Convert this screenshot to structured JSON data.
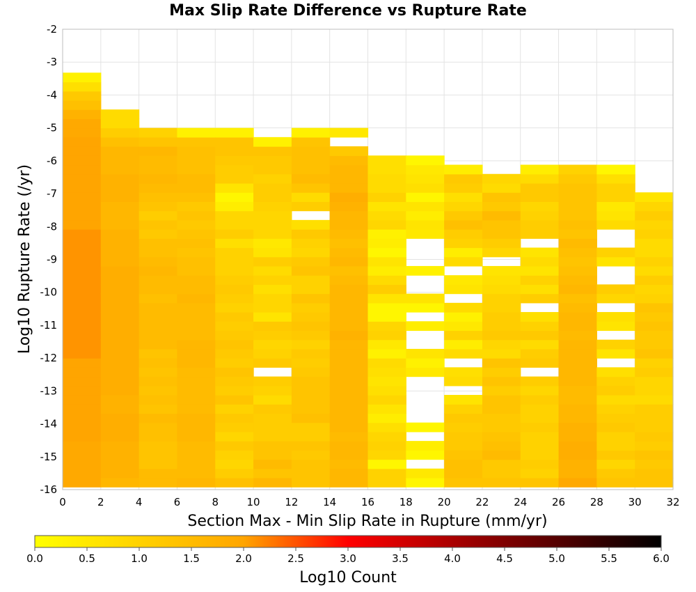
{
  "chart_data": {
    "type": "heatmap",
    "title": "Max Slip Rate Difference vs Rupture Rate",
    "xlabel": "Section Max - Min Slip Rate in Rupture (mm/yr)",
    "ylabel": "Log10 Rupture Rate (/yr)",
    "xlim": [
      0,
      32
    ],
    "ylim": [
      -16,
      -2
    ],
    "x_ticks": [
      "0",
      "2",
      "4",
      "6",
      "8",
      "10",
      "12",
      "14",
      "16",
      "18",
      "20",
      "22",
      "24",
      "26",
      "28",
      "30",
      "32"
    ],
    "y_ticks": [
      "-2",
      "-3",
      "-4",
      "-5",
      "-6",
      "-7",
      "-8",
      "-9",
      "-10",
      "-11",
      "-12",
      "-13",
      "-14",
      "-15",
      "-16"
    ],
    "x_bin_width": 2,
    "y_bin_height": 0.28,
    "y_bin_edges_start": -15.92,
    "grid": true,
    "colorbar": {
      "label": "Log10 Count",
      "range": [
        0,
        6
      ],
      "ticks": [
        "0.0",
        "0.5",
        "1.0",
        "1.5",
        "2.0",
        "2.5",
        "3.0",
        "3.5",
        "4.0",
        "4.5",
        "5.0",
        "5.5",
        "6.0"
      ],
      "colors": [
        "#ffff00",
        "#ffa500",
        "#ff0000",
        "#000000"
      ]
    },
    "columns": [
      {
        "x_start": 0,
        "values": [
          1.9,
          1.9,
          1.9,
          1.9,
          1.9,
          2.0,
          2.0,
          2.0,
          2.0,
          2.0,
          2.0,
          2.0,
          2.0,
          2.0,
          2.1,
          2.1,
          2.1,
          2.1,
          2.1,
          2.1,
          2.1,
          2.1,
          2.1,
          2.1,
          2.1,
          2.1,
          2.1,
          2.1,
          2.0,
          2.0,
          2.0,
          2.0,
          2.0,
          2.0,
          2.0,
          2.0,
          2.0,
          2.0,
          1.9,
          1.9,
          1.7,
          1.4,
          1.2,
          0.7,
          0.3
        ]
      },
      {
        "x_start": 2,
        "values": [
          1.6,
          1.7,
          1.7,
          1.7,
          1.7,
          1.8,
          1.8,
          1.8,
          1.7,
          1.7,
          1.8,
          1.8,
          1.8,
          1.8,
          1.8,
          1.8,
          1.8,
          1.8,
          1.8,
          1.8,
          1.8,
          1.8,
          1.8,
          1.8,
          1.7,
          1.7,
          1.7,
          1.7,
          1.6,
          1.6,
          1.6,
          1.7,
          1.7,
          1.7,
          1.6,
          1.6,
          1.6,
          1.4,
          1.1,
          0.8,
          0.8
        ]
      },
      {
        "x_start": 4,
        "values": [
          1.5,
          1.5,
          1.3,
          1.3,
          1.3,
          1.4,
          1.4,
          1.5,
          1.3,
          1.4,
          1.3,
          1.4,
          1.3,
          1.4,
          1.3,
          1.5,
          1.5,
          1.5,
          1.5,
          1.5,
          1.4,
          1.5,
          1.5,
          1.6,
          1.5,
          1.4,
          1.4,
          1.2,
          1.3,
          1.1,
          1.3,
          1.4,
          1.5,
          1.6,
          1.5,
          1.5,
          1.6,
          1.3,
          1.0
        ]
      },
      {
        "x_start": 6,
        "values": [
          1.6,
          1.5,
          1.5,
          1.5,
          1.5,
          1.6,
          1.6,
          1.6,
          1.5,
          1.5,
          1.5,
          1.5,
          1.5,
          1.6,
          1.6,
          1.6,
          1.5,
          1.5,
          1.5,
          1.5,
          1.6,
          1.5,
          1.5,
          1.4,
          1.4,
          1.3,
          1.4,
          1.3,
          1.2,
          1.3,
          1.2,
          1.4,
          1.5,
          1.5,
          1.4,
          1.4,
          1.4,
          1.3,
          0.3
        ]
      },
      {
        "x_start": 8,
        "values": [
          1.4,
          1.1,
          0.9,
          1.0,
          1.2,
          0.9,
          1.1,
          1.2,
          1.0,
          1.3,
          1.1,
          1.2,
          1.3,
          1.1,
          1.2,
          1.3,
          1.2,
          1.1,
          1.2,
          1.0,
          1.1,
          1.2,
          1.1,
          1.0,
          1.0,
          1.0,
          0.7,
          1.1,
          0.9,
          0.9,
          0.4,
          0.2,
          0.6,
          1.1,
          1.1,
          1.2,
          1.3,
          1.3,
          0.3
        ]
      },
      {
        "x_start": 10,
        "values": [
          1.6,
          1.3,
          1.5,
          1.3,
          1.3,
          1.1,
          1.1,
          1.1,
          1.2,
          0.8,
          1.0,
          1.1,
          null,
          1.2,
          1.0,
          0.9,
          1.1,
          1.2,
          0.6,
          0.9,
          0.9,
          0.7,
          1.0,
          0.8,
          1.1,
          0.6,
          0.5,
          0.9,
          0.9,
          0.9,
          1.0,
          1.1,
          1.1,
          1.0,
          1.2,
          1.2,
          1.3,
          0.3
        ]
      },
      {
        "x_start": 12,
        "values": [
          1.3,
          1.3,
          1.3,
          1.2,
          1.3,
          1.1,
          1.1,
          1.4,
          1.3,
          1.3,
          1.3,
          1.3,
          1.2,
          1.1,
          1.2,
          1.0,
          1.2,
          1.3,
          1.2,
          1.1,
          1.3,
          1.0,
          1.0,
          1.3,
          1.2,
          0.9,
          1.0,
          1.2,
          0.7,
          null,
          1.1,
          0.8,
          1.3,
          1.5,
          1.4,
          1.4,
          1.4,
          1.3,
          0.3
        ]
      },
      {
        "x_start": 14,
        "values": [
          1.6,
          1.6,
          1.5,
          1.6,
          1.6,
          1.5,
          1.6,
          1.6,
          1.6,
          1.6,
          1.6,
          1.6,
          1.6,
          1.6,
          1.6,
          1.6,
          1.7,
          1.6,
          1.6,
          1.6,
          1.6,
          1.6,
          1.5,
          1.4,
          1.6,
          1.5,
          1.4,
          1.5,
          1.6,
          1.6,
          1.7,
          1.8,
          1.6,
          1.6,
          1.6,
          1.5,
          1.2,
          null,
          0.5
        ]
      },
      {
        "x_start": 16,
        "values": [
          1.0,
          1.0,
          0.2,
          0.9,
          1.0,
          0.9,
          0.7,
          0.4,
          0.6,
          0.9,
          0.7,
          0.6,
          0.7,
          0.8,
          0.3,
          0.5,
          1.0,
          0.9,
          0.2,
          0.2,
          0.6,
          1.1,
          0.8,
          0.4,
          0.6,
          0.2,
          0.4,
          0.3,
          0.9,
          0.8,
          0.6,
          1.0,
          0.8,
          0.8,
          0.7,
          0.7
        ]
      },
      {
        "x_start": 18,
        "values": [
          0.2,
          0.5,
          null,
          0.2,
          0.4,
          null,
          0.2,
          null,
          null,
          null,
          null,
          null,
          0.5,
          0.3,
          0.6,
          null,
          null,
          0.4,
          null,
          0.2,
          0.6,
          null,
          null,
          0.3,
          null,
          null,
          null,
          0.5,
          0.6,
          0.4,
          0.6,
          0.2,
          0.7,
          0.6,
          0.5,
          0.2
        ]
      },
      {
        "x_start": 20,
        "values": [
          1.3,
          1.4,
          1.4,
          1.3,
          1.2,
          1.2,
          1.1,
          1.2,
          1.0,
          0.6,
          null,
          0.8,
          0.7,
          null,
          0.8,
          0.4,
          1.0,
          0.5,
          0.3,
          0.8,
          null,
          0.6,
          0.5,
          null,
          0.8,
          0.4,
          1.0,
          1.1,
          1.4,
          1.2,
          0.9,
          0.7,
          1.1,
          1.2,
          0.4
        ]
      },
      {
        "x_start": 22,
        "values": [
          1.3,
          1.2,
          1.2,
          1.5,
          1.4,
          1.3,
          1.2,
          1.2,
          1.3,
          1.3,
          1.1,
          1.3,
          1.1,
          1.3,
          0.8,
          0.9,
          1.2,
          1.1,
          1.1,
          1.0,
          1.0,
          0.8,
          0.7,
          0.6,
          null,
          0.9,
          1.1,
          1.3,
          1.3,
          1.5,
          1.2,
          1.3,
          0.8,
          0.9
        ]
      },
      {
        "x_start": 24,
        "values": [
          1.3,
          1.0,
          1.1,
          1.0,
          1.0,
          1.0,
          1.1,
          1.0,
          1.0,
          1.1,
          0.9,
          1.1,
          null,
          1.2,
          1.1,
          0.8,
          1.2,
          1.0,
          0.7,
          null,
          1.1,
          0.7,
          1.0,
          0.6,
          0.8,
          0.6,
          null,
          1.1,
          1.1,
          1.0,
          0.9,
          1.2,
          1.2,
          0.8,
          0.4
        ]
      },
      {
        "x_start": 26,
        "values": [
          1.9,
          1.7,
          1.7,
          1.8,
          1.8,
          1.7,
          1.7,
          1.6,
          1.6,
          1.5,
          1.5,
          1.6,
          1.6,
          1.6,
          1.6,
          1.6,
          1.5,
          1.6,
          1.6,
          1.5,
          1.4,
          1.6,
          1.5,
          1.4,
          1.3,
          1.4,
          1.5,
          1.3,
          1.4,
          1.3,
          1.3,
          1.3,
          1.3,
          1.2,
          1.0
        ]
      },
      {
        "x_start": 28,
        "values": [
          1.3,
          1.2,
          0.9,
          1.2,
          1.0,
          1.0,
          1.2,
          1.1,
          1.0,
          0.8,
          1.1,
          1.0,
          0.7,
          null,
          0.6,
          1.0,
          null,
          0.6,
          0.7,
          null,
          0.9,
          1.1,
          null,
          null,
          0.6,
          1.0,
          null,
          null,
          0.8,
          0.6,
          0.5,
          1.0,
          1.0,
          0.7,
          0.2
        ]
      },
      {
        "x_start": 30,
        "values": [
          1.3,
          1.3,
          1.2,
          1.3,
          1.1,
          1.2,
          1.1,
          1.1,
          1.1,
          0.8,
          0.9,
          0.9,
          1.1,
          1.0,
          1.3,
          1.2,
          1.2,
          1.3,
          1.2,
          1.3,
          1.0,
          0.9,
          1.1,
          0.8,
          1.0,
          0.8,
          0.8,
          1.0,
          0.9,
          1.1,
          0.9,
          0.6
        ]
      }
    ]
  }
}
